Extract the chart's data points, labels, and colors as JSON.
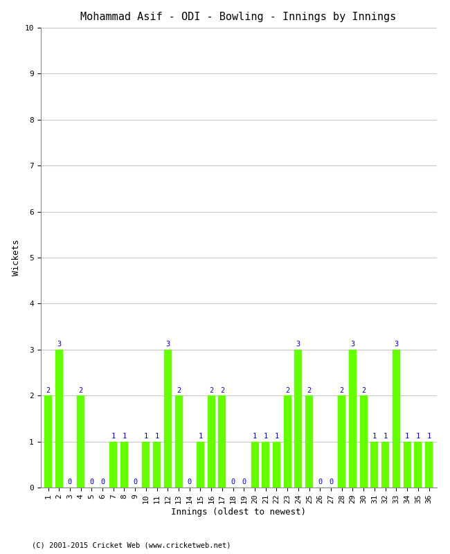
{
  "title": "Mohammad Asif - ODI - Bowling - Innings by Innings",
  "xlabel": "Innings (oldest to newest)",
  "ylabel": "Wickets",
  "copyright": "(C) 2001-2015 Cricket Web (www.cricketweb.net)",
  "innings": [
    1,
    2,
    3,
    4,
    5,
    6,
    7,
    8,
    9,
    10,
    11,
    12,
    13,
    14,
    15,
    16,
    17,
    18,
    19,
    20,
    21,
    22,
    23,
    24,
    25,
    26,
    27,
    28,
    29,
    30,
    31,
    32,
    33,
    34,
    35,
    36
  ],
  "wickets": [
    2,
    3,
    0,
    2,
    0,
    0,
    1,
    1,
    0,
    1,
    1,
    3,
    2,
    0,
    1,
    2,
    2,
    0,
    0,
    1,
    1,
    1,
    2,
    3,
    2,
    0,
    0,
    2,
    3,
    2,
    1,
    1,
    3,
    1,
    1,
    1
  ],
  "bar_color": "#66ff00",
  "bar_edge_color": "#66ff00",
  "label_color": "#0000cc",
  "background_color": "#ffffff",
  "grid_color": "#c8c8c8",
  "ylim": [
    0,
    10
  ],
  "yticks": [
    0,
    1,
    2,
    3,
    4,
    5,
    6,
    7,
    8,
    9,
    10
  ],
  "title_fontsize": 11,
  "label_fontsize": 9,
  "tick_fontsize": 8,
  "annotation_fontsize": 7.5
}
